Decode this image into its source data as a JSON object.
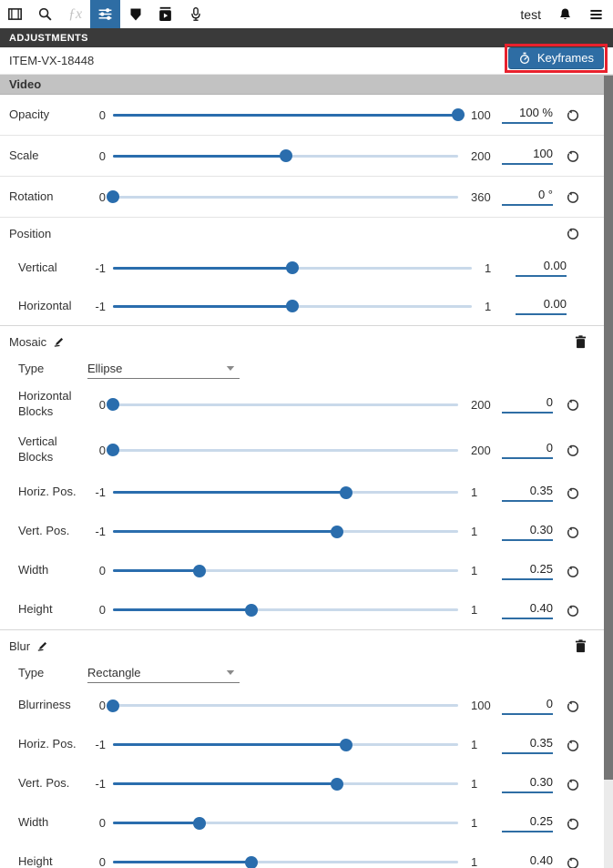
{
  "colors": {
    "accent_blue": "#2e6da4",
    "slider_fill_blue": "#2a6dad",
    "slider_track_blue": "#c9d9ea",
    "annotation_red": "#e8212d",
    "section_bar_gray": "#c2c2c2",
    "panel_bar_dark": "#3a3a3a"
  },
  "toolbar": {
    "tabs": [
      {
        "icon": "filmstrip-icon",
        "active": false,
        "disabled": false
      },
      {
        "icon": "search-icon",
        "active": false,
        "disabled": false
      },
      {
        "icon": "effects-icon",
        "active": false,
        "disabled": true
      },
      {
        "icon": "adjustments-sliders-icon",
        "active": true,
        "disabled": false
      },
      {
        "icon": "shield-marker-icon",
        "active": false,
        "disabled": false
      },
      {
        "icon": "video-export-icon",
        "active": false,
        "disabled": false
      },
      {
        "icon": "microphone-icon",
        "active": false,
        "disabled": false
      }
    ],
    "user_label": "test",
    "right_icons": [
      "bell-icon",
      "menu-icon"
    ]
  },
  "panel": {
    "title": "ADJUSTMENTS",
    "item_id": "ITEM-VX-18448",
    "keyframes_label": "Keyframes",
    "keyframes_icon": "stopwatch-icon",
    "keyframes_highlighted": true
  },
  "groups": [
    {
      "name": "video",
      "header_label": "Video",
      "header_style": "bar",
      "rows": [
        {
          "kind": "slider",
          "label": "Opacity",
          "min": "0",
          "max": "100",
          "value": "100 %",
          "reset": true
        },
        {
          "kind": "slider",
          "label": "Scale",
          "min": "0",
          "max": "200",
          "value": "100",
          "reset": true
        },
        {
          "kind": "slider",
          "label": "Rotation",
          "min": "0",
          "max": "360",
          "value": "0 °",
          "reset": true
        }
      ]
    },
    {
      "name": "position",
      "header_label": "Position",
      "header_reset": true,
      "bordered": true,
      "indent_rows": true,
      "rows": [
        {
          "kind": "slider",
          "label": "Vertical",
          "min": "-1",
          "max": "1",
          "value": "0.00",
          "reset": false
        },
        {
          "kind": "slider",
          "label": "Horizontal",
          "min": "-1",
          "max": "1",
          "value": "0.00",
          "reset": false
        }
      ]
    },
    {
      "name": "mosaic",
      "header_label": "Mosaic",
      "header_edit": true,
      "header_delete": true,
      "bordered": true,
      "indent_rows": true,
      "rows": [
        {
          "kind": "dropdown",
          "label": "Type",
          "value": "Ellipse"
        },
        {
          "kind": "slider",
          "label": "Horizontal Blocks",
          "min": "0",
          "max": "200",
          "value": "0",
          "reset": true,
          "tall": true
        },
        {
          "kind": "slider",
          "label": "Vertical Blocks",
          "min": "0",
          "max": "200",
          "value": "0",
          "reset": true,
          "tall": true
        },
        {
          "kind": "slider",
          "label": "Horiz. Pos.",
          "min": "-1",
          "max": "1",
          "value": "0.35",
          "reset": true
        },
        {
          "kind": "slider",
          "label": "Vert. Pos.",
          "min": "-1",
          "max": "1",
          "value": "0.30",
          "reset": true
        },
        {
          "kind": "slider",
          "label": "Width",
          "min": "0",
          "max": "1",
          "value": "0.25",
          "reset": true
        },
        {
          "kind": "slider",
          "label": "Height",
          "min": "0",
          "max": "1",
          "value": "0.40",
          "reset": true
        }
      ]
    },
    {
      "name": "blur",
      "header_label": "Blur",
      "header_edit": true,
      "header_delete": true,
      "bordered": false,
      "indent_rows": true,
      "rows": [
        {
          "kind": "dropdown",
          "label": "Type",
          "value": "Rectangle"
        },
        {
          "kind": "slider",
          "label": "Blurriness",
          "min": "0",
          "max": "100",
          "value": "0",
          "reset": true
        },
        {
          "kind": "slider",
          "label": "Horiz. Pos.",
          "min": "-1",
          "max": "1",
          "value": "0.35",
          "reset": true
        },
        {
          "kind": "slider",
          "label": "Vert. Pos.",
          "min": "-1",
          "max": "1",
          "value": "0.30",
          "reset": true
        },
        {
          "kind": "slider",
          "label": "Width",
          "min": "0",
          "max": "1",
          "value": "0.25",
          "reset": true
        },
        {
          "kind": "slider",
          "label": "Height",
          "min": "0",
          "max": "1",
          "value": "0.40",
          "reset": true
        }
      ]
    }
  ]
}
